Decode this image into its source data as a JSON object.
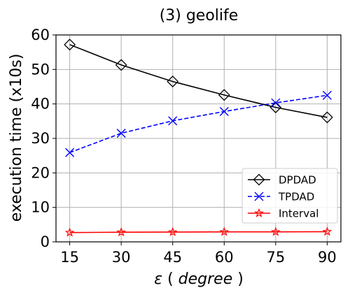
{
  "chart_data": {
    "type": "line",
    "title": "(3) geolife",
    "xlabel_symbol": "ε",
    "xlabel_unit": "degree",
    "ylabel": "execution time (x10s)",
    "x": [
      15,
      30,
      45,
      60,
      75,
      90
    ],
    "xlim": [
      11,
      94
    ],
    "ylim": [
      0,
      60
    ],
    "yticks": [
      0,
      10,
      20,
      30,
      40,
      50,
      60
    ],
    "grid": true,
    "legend_position": "lower-right",
    "series": [
      {
        "name": "DPDAD",
        "values": [
          57.2,
          51.3,
          46.5,
          42.6,
          39.0,
          36.1
        ],
        "color": "#000000",
        "marker": "diamond",
        "line_style": "solid"
      },
      {
        "name": "TPDAD",
        "values": [
          25.9,
          31.5,
          35.1,
          37.8,
          40.3,
          42.5
        ],
        "color": "#0000ff",
        "marker": "x",
        "line_style": "dashed"
      },
      {
        "name": "Interval",
        "values": [
          2.7,
          2.8,
          2.85,
          2.9,
          2.9,
          2.95
        ],
        "color": "#ff0000",
        "marker": "star",
        "line_style": "solid"
      }
    ]
  }
}
